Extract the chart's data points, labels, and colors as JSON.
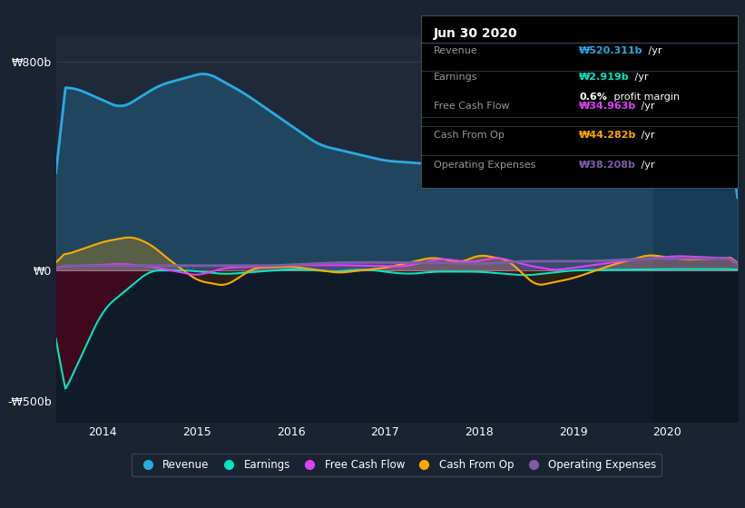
{
  "bg_color": "#1a2332",
  "plot_bg_color": "#1e2a3a",
  "title": "Jun 30 2020",
  "ylabel_top": "₩800b",
  "ylabel_bottom": "-₩500b",
  "ylabel_zero": "₩0",
  "x_min": 2013.5,
  "x_max": 2020.75,
  "y_min": -580,
  "y_max": 900,
  "revenue_color": "#29abe2",
  "earnings_color": "#00e5c0",
  "fcf_color": "#e040fb",
  "cashfromop_color": "#ffaa00",
  "opex_color": "#7b5ea7",
  "legend_items": [
    {
      "label": "Revenue",
      "color": "#29abe2"
    },
    {
      "label": "Earnings",
      "color": "#00e5c0"
    },
    {
      "label": "Free Cash Flow",
      "color": "#e040fb"
    },
    {
      "label": "Cash From Op",
      "color": "#ffaa00"
    },
    {
      "label": "Operating Expenses",
      "color": "#7b5ea7"
    }
  ]
}
